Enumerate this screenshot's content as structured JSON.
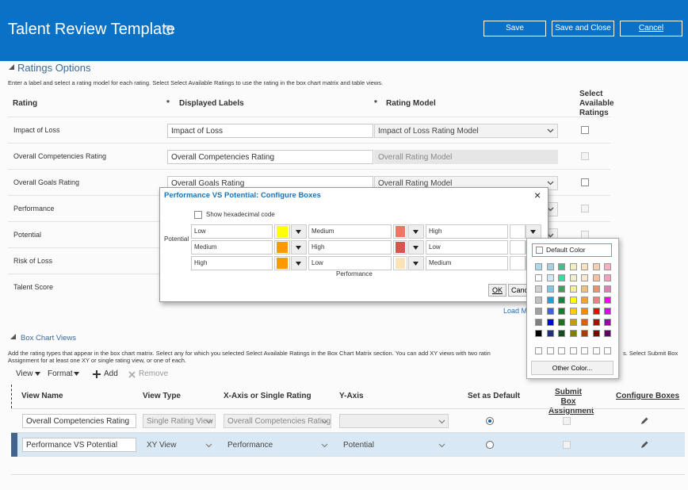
{
  "header": {
    "title": "Talent Review Template",
    "buttons": [
      "Save",
      "Save and Close",
      "Cancel"
    ]
  },
  "ratings": {
    "title": "Ratings Options",
    "instructions": "Enter a label and select a rating model for each rating. Select Select Available Ratings to use the rating in the box chart matrix and table views.",
    "required_mark": "*",
    "columns": [
      "Rating",
      "Displayed Labels",
      "Rating Model",
      "Select Available Ratings"
    ],
    "rows": [
      {
        "rating": "Impact of Loss",
        "label": "Impact of Loss",
        "model": "Impact of Loss Rating Model"
      },
      {
        "rating": "Overall Competencies Rating",
        "label": "Overall Competencies Rating",
        "model": "Overall Rating Model"
      },
      {
        "rating": "Overall Goals Rating",
        "label": "Overall Goals Rating",
        "model": "Overall Rating Model"
      },
      {
        "rating": "Performance"
      },
      {
        "rating": "Potential"
      },
      {
        "rating": "Risk of Loss"
      },
      {
        "rating": "Talent Score"
      }
    ],
    "load_link": "Load M"
  },
  "dialog": {
    "title": "Performance VS Potential: Configure Boxes",
    "close": "×",
    "hex_option": "Show hexadecimal code",
    "y_label": "Potential",
    "x_label": "Performance",
    "grid": [
      [
        {
          "label": "Low",
          "color": "#ffff00"
        },
        {
          "label": "Medium",
          "color": "#f07563"
        },
        {
          "label": "High"
        }
      ],
      [
        {
          "label": "Medium",
          "color": "#ff9900"
        },
        {
          "label": "High",
          "color": "#d9534f"
        },
        {
          "label": "Low"
        }
      ],
      [
        {
          "label": "High",
          "color": "#ff9900"
        },
        {
          "label": "Low",
          "color": "#fde3b8"
        },
        {
          "label": "Medium"
        }
      ]
    ],
    "ok": "OK",
    "cancel": "Cancel"
  },
  "color_picker": {
    "default": "Default Color",
    "palette": [
      [
        "#b0d8e8",
        "#a8d0e0",
        "#40c090",
        "#f0f0c0",
        "#f8e0c0",
        "#f8d0b0",
        "#f8b0c0"
      ],
      [
        "#ffffff",
        "#d0e8f0",
        "#30e0a0",
        "#f0f0d0",
        "#f8e8d0",
        "#f8c0a0",
        "#f0a0c0"
      ],
      [
        "#d0d0d0",
        "#80c8e0",
        "#40a060",
        "#f0f0a0",
        "#f0c080",
        "#f09070",
        "#e080b0"
      ],
      [
        "#c0c0c0",
        "#20a0e0",
        "#208040",
        "#ffff00",
        "#f0a040",
        "#f08080",
        "#ff00ff"
      ],
      [
        "#a0a0a0",
        "#4060e0",
        "#108030",
        "#ffcc00",
        "#ff8800",
        "#ff0000",
        "#e000e0"
      ],
      [
        "#808080",
        "#0000ff",
        "#207020",
        "#c0a000",
        "#e06000",
        "#c00000",
        "#a000a0"
      ],
      [
        "#000000",
        "#203080",
        "#105020",
        "#808000",
        "#a04000",
        "#800000",
        "#600060"
      ]
    ],
    "other": "Other Color..."
  },
  "box_views": {
    "title": "Box Chart Views",
    "instructions": [
      "Add the rating types that appear in the box chart matrix. Select any for which you selected Select Available Ratings in the Box Chart Matrix section. You can add XY views with two ratin",
      "s. Select Submit Box",
      "Assignment for at least one XY or single rating view, or one of each."
    ],
    "toolbar": [
      "View",
      "Format",
      "Add",
      "Remove"
    ],
    "columns": [
      "View Name",
      "View Type",
      "X-Axis or Single Rating",
      "Y-Axis",
      "Set as Default",
      "Submit Box Assignment",
      "Configure Boxes"
    ],
    "rows": [
      {
        "name": "Overall Competencies Rating",
        "type": "Single Rating View",
        "x_axis": "Overall Competencies Rating"
      },
      {
        "name": "Performance VS Potential",
        "type": "XY View",
        "x_axis": "Performance",
        "y_axis": "Potential"
      }
    ]
  }
}
